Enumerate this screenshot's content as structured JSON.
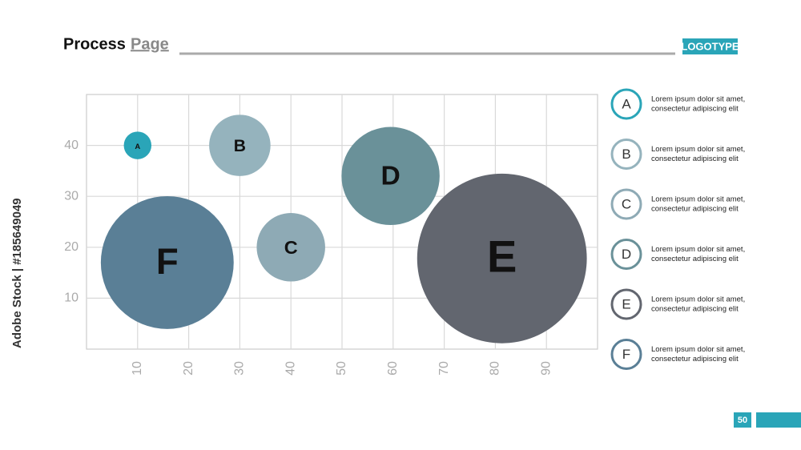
{
  "header": {
    "title_main": "Process",
    "title_accent": "Page",
    "logo": "LOGOTYPE",
    "page_number": 50
  },
  "watermark": "Adobe Stock | #185649049",
  "chart_data": {
    "type": "bubble",
    "xlim": [
      0,
      100
    ],
    "xticks": [
      10,
      20,
      30,
      40,
      50,
      60,
      70,
      80,
      90
    ],
    "ylim": [
      0,
      50
    ],
    "yticks": [
      10,
      20,
      30,
      40
    ],
    "grid": true,
    "series": [
      {
        "name": "A",
        "color": "#2aa5b8",
        "x": [
          10
        ],
        "values": [
          40
        ],
        "sizes": [
          2.7
        ]
      },
      {
        "name": "B",
        "color": "#95b3bd",
        "x": [
          30
        ],
        "values": [
          40
        ],
        "sizes": [
          6
        ]
      },
      {
        "name": "C",
        "color": "#8eaab5",
        "x": [
          40
        ],
        "values": [
          20
        ],
        "sizes": [
          6.7
        ]
      },
      {
        "name": "D",
        "color": "#6a9199",
        "x": [
          59.5
        ],
        "values": [
          34
        ],
        "sizes": [
          9.6
        ]
      },
      {
        "name": "E",
        "color": "#62666f",
        "x": [
          81.3
        ],
        "values": [
          17.8
        ],
        "sizes": [
          16.6
        ]
      },
      {
        "name": "F",
        "color": "#5a7f96",
        "x": [
          15.8
        ],
        "values": [
          17
        ],
        "sizes": [
          13
        ]
      }
    ],
    "legend_descriptions": [
      [
        "Lorem ipsum dolor sit amet,",
        "consectetur adipiscing elit"
      ],
      [
        "Lorem ipsum dolor sit amet,",
        "consectetur adipiscing elit"
      ],
      [
        "Lorem ipsum dolor sit amet,",
        "consectetur adipiscing elit"
      ],
      [
        "Lorem ipsum dolor sit amet,",
        "consectetur adipiscing elit"
      ],
      [
        "Lorem ipsum dolor sit amet,",
        "consectetur adipiscing elit"
      ],
      [
        "Lorem ipsum dolor sit amet,",
        "consectetur adipiscing elit"
      ]
    ]
  }
}
